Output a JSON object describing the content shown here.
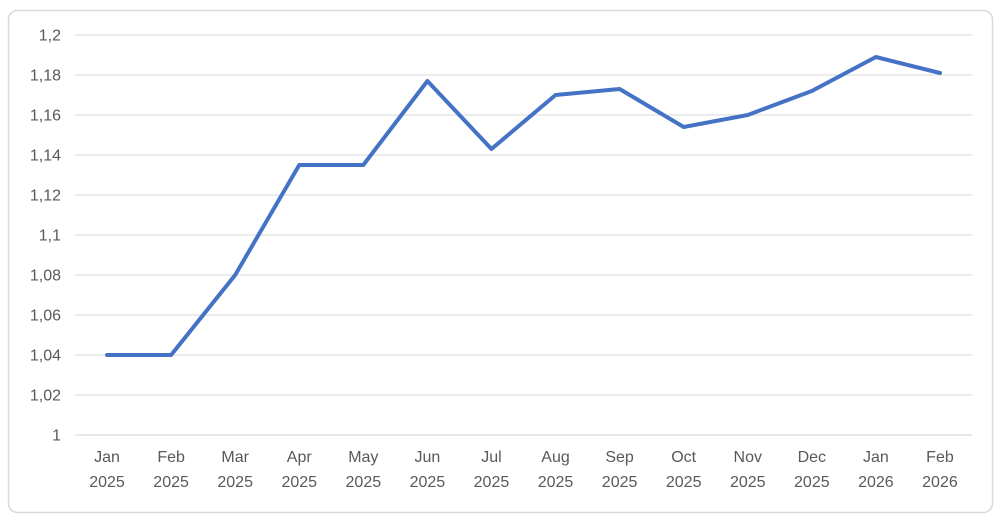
{
  "page": {
    "background": "#ffffff"
  },
  "chart_data": {
    "type": "line",
    "title": "",
    "xlabel": "",
    "ylabel": "",
    "categories": [
      "Jan 2025",
      "Feb 2025",
      "Mar 2025",
      "Apr 2025",
      "May 2025",
      "Jun 2025",
      "Jul 2025",
      "Aug 2025",
      "Sep 2025",
      "Oct 2025",
      "Nov 2025",
      "Dec 2025",
      "Jan 2026",
      "Feb 2026"
    ],
    "series": [
      {
        "name": "series-1",
        "values": [
          1.04,
          1.04,
          1.08,
          1.135,
          1.135,
          1.177,
          1.143,
          1.17,
          1.173,
          1.154,
          1.16,
          1.172,
          1.189,
          1.181
        ]
      }
    ],
    "ylim": [
      1.0,
      1.2
    ],
    "ytick_step": 0.02,
    "ytick_labels": [
      "1",
      "1,02",
      "1,04",
      "1,06",
      "1,08",
      "1,1",
      "1,12",
      "1,14",
      "1,16",
      "1,18",
      "1,2"
    ],
    "grid": true,
    "legend": "none",
    "colors": {
      "line": "#4472C4",
      "gridline": "#D9D9D9",
      "axis_line": "#D0D0D0",
      "tick_label": "#595959",
      "frame_border": "#D9D9D9",
      "plot_background": "#ffffff"
    }
  }
}
